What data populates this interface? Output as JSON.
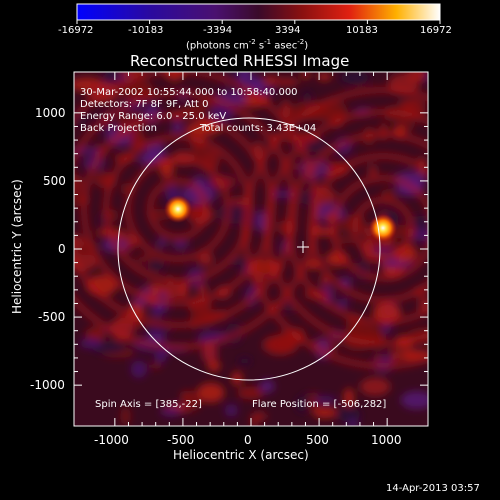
{
  "colorbar": {
    "tick_labels": [
      "-16972",
      "-10183",
      "-3394",
      "3394",
      "10183",
      "16972"
    ],
    "units_prefix": "(photons cm",
    "units_sup1": "-2",
    "units_mid": " s",
    "units_sup2": "-1",
    "units_mid2": " asec",
    "units_sup3": "-2",
    "units_suffix": ")"
  },
  "image": {
    "title": "Reconstructed RHESSI Image",
    "info_lines": [
      "30-Mar-2002 10:55:44.000 to 10:58:40.000",
      "Detectors: 7F 8F 9F, Att 0",
      "Energy Range: 6.0 - 25.0 keV"
    ],
    "method": "Back Projection",
    "total_counts": "Total counts: 3.43E+04",
    "spin_axis": "Spin Axis = [385,-22]",
    "flare_position": "Flare Position = [-506,282]",
    "x_axis_label": "Heliocentric X (arcsec)",
    "y_axis_label": "Heliocentric Y (arcsec)",
    "x_tick_labels": [
      "-1000",
      "-500",
      "0",
      "500",
      "1000"
    ],
    "y_tick_labels": [
      "1000",
      "500",
      "0",
      "-500",
      "-1000"
    ],
    "x_range": [
      -1300,
      1300
    ],
    "y_range": [
      -1300,
      1300
    ],
    "colormap": "blue-purple-red-yellow-white"
  },
  "footer": {
    "timestamp": "14-Apr-2013 03:57"
  }
}
